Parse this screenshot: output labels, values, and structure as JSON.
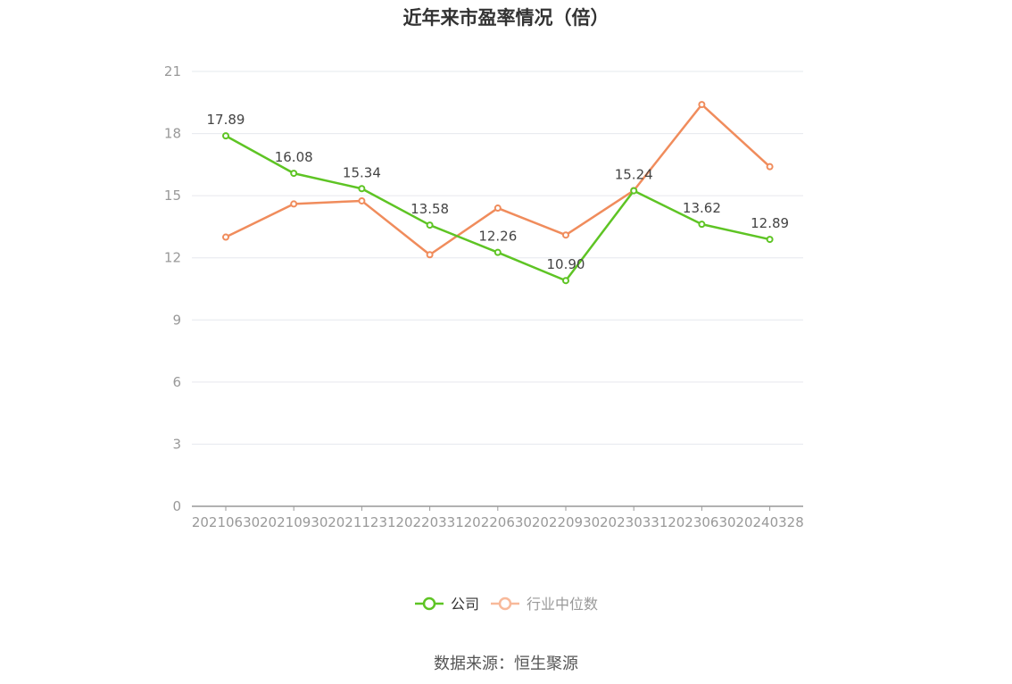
{
  "title": "近年来市盈率情况（倍）",
  "source": "数据来源：恒生聚源",
  "colors": {
    "company": "#5ec424",
    "industry": "#f08c5c",
    "grid": "#e6e8ee",
    "axis": "#999999"
  },
  "chart_data": {
    "type": "line",
    "title": "近年来市盈率情况（倍）",
    "categories": [
      "20210630",
      "20210930",
      "20211231",
      "20220331",
      "20220630",
      "20220930",
      "20230331",
      "20230630",
      "20240328"
    ],
    "ylim": [
      0,
      21
    ],
    "yticks": [
      0,
      3,
      6,
      9,
      12,
      15,
      18,
      21
    ],
    "grid": true,
    "legend_position": "bottom",
    "series": [
      {
        "name": "公司",
        "values": [
          17.89,
          16.08,
          15.34,
          13.58,
          12.26,
          10.9,
          15.24,
          13.62,
          12.89
        ],
        "labels": [
          "17.89",
          "16.08",
          "15.34",
          "13.58",
          "12.26",
          "10.90",
          "15.24",
          "13.62",
          "12.89"
        ]
      },
      {
        "name": "行业中位数",
        "values": [
          13.0,
          14.6,
          14.75,
          12.15,
          14.4,
          13.1,
          15.25,
          19.4,
          16.4
        ]
      }
    ]
  }
}
